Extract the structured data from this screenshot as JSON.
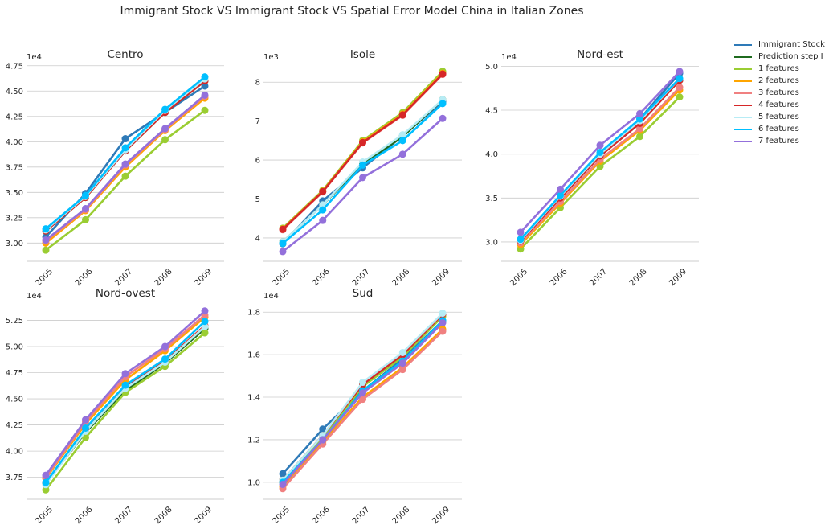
{
  "title": "Immigrant Stock VS Immigrant Stock VS Spatial Error Model China in Italian Zones",
  "legend": [
    {
      "name": "Immigrant Stock",
      "color": "#2e7ab8"
    },
    {
      "name": "Prediction step I",
      "color": "#1f6b1f"
    },
    {
      "name": "1 features",
      "color": "#9acd32"
    },
    {
      "name": "2 features",
      "color": "#ffa500"
    },
    {
      "name": "3 features",
      "color": "#f08080"
    },
    {
      "name": "4 features",
      "color": "#d62728"
    },
    {
      "name": "5 features",
      "color": "#b7ecf5"
    },
    {
      "name": "6 features",
      "color": "#00bfff"
    },
    {
      "name": "7 features",
      "color": "#9370db"
    }
  ],
  "chart_data": [
    {
      "type": "line",
      "title": "Centro",
      "multiplier_label": "1e4",
      "x": [
        "2005",
        "2006",
        "2007",
        "2008",
        "2009"
      ],
      "ylim": [
        28200,
        47800
      ],
      "yticks": [
        30000,
        32500,
        35000,
        37500,
        40000,
        42500,
        45000,
        47500
      ],
      "ytick_labels": [
        "3.00",
        "3.25",
        "3.50",
        "3.75",
        "4.00",
        "4.25",
        "4.50",
        "4.75"
      ],
      "series": [
        {
          "name": "Immigrant Stock",
          "color": "#2e7ab8",
          "values": [
            30600,
            34900,
            40300,
            42900,
            45500
          ]
        },
        {
          "name": "Prediction step I",
          "color": "#1f6b1f",
          "values": [
            31200,
            34500,
            39100,
            42900,
            46000
          ]
        },
        {
          "name": "1 features",
          "color": "#9acd32",
          "values": [
            29300,
            32300,
            36600,
            40200,
            43100
          ]
        },
        {
          "name": "2 features",
          "color": "#ffa500",
          "values": [
            30000,
            33200,
            37500,
            41100,
            44300
          ]
        },
        {
          "name": "3 features",
          "color": "#f08080",
          "values": [
            30200,
            33300,
            37700,
            41200,
            44500
          ]
        },
        {
          "name": "4 features",
          "color": "#d62728",
          "values": [
            31200,
            34500,
            39100,
            42900,
            46000
          ]
        },
        {
          "name": "5 features",
          "color": "#b7ecf5",
          "values": [
            31300,
            34600,
            39200,
            43100,
            46200
          ]
        },
        {
          "name": "6 features",
          "color": "#00bfff",
          "values": [
            31400,
            34700,
            39400,
            43200,
            46400
          ]
        },
        {
          "name": "7 features",
          "color": "#9370db",
          "values": [
            30300,
            33400,
            37800,
            41300,
            44600
          ]
        }
      ]
    },
    {
      "type": "line",
      "title": "Isole",
      "multiplier_label": "1e3",
      "x": [
        "2005",
        "2006",
        "2007",
        "2008",
        "2009"
      ],
      "ylim": [
        3400,
        8500
      ],
      "yticks": [
        4000,
        5000,
        6000,
        7000,
        8000
      ],
      "ytick_labels": [
        "4",
        "5",
        "6",
        "7",
        "8"
      ],
      "series": [
        {
          "name": "Immigrant Stock",
          "color": "#2e7ab8",
          "values": [
            3850,
            4950,
            5800,
            6620,
            7500
          ]
        },
        {
          "name": "Prediction step I",
          "color": "#1f6b1f",
          "values": [
            3900,
            4850,
            5900,
            6600,
            7550
          ]
        },
        {
          "name": "1 features",
          "color": "#9acd32",
          "values": [
            4250,
            5220,
            6500,
            7220,
            8280
          ]
        },
        {
          "name": "2 features",
          "color": "#ffa500",
          "values": [
            4230,
            5200,
            6470,
            7180,
            8230
          ]
        },
        {
          "name": "3 features",
          "color": "#f08080",
          "values": [
            4210,
            5180,
            6440,
            7150,
            8200
          ]
        },
        {
          "name": "4 features",
          "color": "#d62728",
          "values": [
            4220,
            5190,
            6450,
            7160,
            8210
          ]
        },
        {
          "name": "5 features",
          "color": "#b7ecf5",
          "values": [
            3900,
            4850,
            5950,
            6650,
            7550
          ]
        },
        {
          "name": "6 features",
          "color": "#00bfff",
          "values": [
            3860,
            4720,
            5870,
            6500,
            7450
          ]
        },
        {
          "name": "7 features",
          "color": "#9370db",
          "values": [
            3650,
            4450,
            5550,
            6150,
            7070
          ]
        }
      ]
    },
    {
      "type": "line",
      "title": "Nord-est",
      "multiplier_label": "1e4",
      "x": [
        "2005",
        "2006",
        "2007",
        "2008",
        "2009"
      ],
      "ylim": [
        27800,
        50400
      ],
      "yticks": [
        30000,
        35000,
        40000,
        45000,
        50000
      ],
      "ytick_labels": [
        "3.0",
        "3.5",
        "4.0",
        "4.5",
        "5.0"
      ],
      "series": [
        {
          "name": "Immigrant Stock",
          "color": "#2e7ab8",
          "values": [
            30300,
            35200,
            40100,
            44000,
            49200
          ]
        },
        {
          "name": "Prediction step I",
          "color": "#1f6b1f",
          "values": [
            30100,
            35000,
            39800,
            43500,
            48400
          ]
        },
        {
          "name": "1 features",
          "color": "#9acd32",
          "values": [
            29200,
            33900,
            38600,
            42000,
            46500
          ]
        },
        {
          "name": "2 features",
          "color": "#ffa500",
          "values": [
            29700,
            34400,
            39200,
            42700,
            47300
          ]
        },
        {
          "name": "3 features",
          "color": "#f08080",
          "values": [
            29900,
            34600,
            39400,
            42900,
            47600
          ]
        },
        {
          "name": "4 features",
          "color": "#d62728",
          "values": [
            30100,
            35000,
            39800,
            43500,
            48400
          ]
        },
        {
          "name": "5 features",
          "color": "#b7ecf5",
          "values": [
            30200,
            35200,
            40000,
            43800,
            48600
          ]
        },
        {
          "name": "6 features",
          "color": "#00bfff",
          "values": [
            30300,
            35300,
            40200,
            44000,
            48600
          ]
        },
        {
          "name": "7 features",
          "color": "#9370db",
          "values": [
            31100,
            36000,
            41000,
            44600,
            49400
          ]
        }
      ]
    },
    {
      "type": "line",
      "title": "Nord-ovest",
      "multiplier_label": "1e4",
      "x": [
        "2005",
        "2006",
        "2007",
        "2008",
        "2009"
      ],
      "ylim": [
        35400,
        54300
      ],
      "yticks": [
        37500,
        40000,
        42500,
        45000,
        47500,
        50000,
        52500
      ],
      "ytick_labels": [
        "3.75",
        "4.00",
        "4.25",
        "4.50",
        "4.75",
        "5.00",
        "5.25"
      ],
      "series": [
        {
          "name": "Immigrant Stock",
          "color": "#2e7ab8",
          "values": [
            36900,
            41900,
            46000,
            48500,
            51900
          ]
        },
        {
          "name": "Prediction step I",
          "color": "#1f6b1f",
          "values": [
            36900,
            41800,
            45800,
            48400,
            51700
          ]
        },
        {
          "name": "1 features",
          "color": "#9acd32",
          "values": [
            36300,
            41300,
            45600,
            48100,
            51300
          ]
        },
        {
          "name": "2 features",
          "color": "#ffa500",
          "values": [
            37400,
            42600,
            46800,
            49600,
            52800
          ]
        },
        {
          "name": "3 features",
          "color": "#f08080",
          "values": [
            37500,
            42800,
            47100,
            49800,
            53000
          ]
        },
        {
          "name": "4 features",
          "color": "#d62728",
          "values": [
            37000,
            42000,
            46100,
            48600,
            52000
          ]
        },
        {
          "name": "5 features",
          "color": "#b7ecf5",
          "values": [
            36800,
            41900,
            46000,
            48500,
            51900
          ]
        },
        {
          "name": "6 features",
          "color": "#00bfff",
          "values": [
            37000,
            42200,
            46300,
            48800,
            52400
          ]
        },
        {
          "name": "7 features",
          "color": "#9370db",
          "values": [
            37700,
            43000,
            47400,
            50000,
            53400
          ]
        }
      ]
    },
    {
      "type": "line",
      "title": "Sud",
      "multiplier_label": "1e4",
      "x": [
        "2005",
        "2006",
        "2007",
        "2008",
        "2009"
      ],
      "ylim": [
        9200,
        18500
      ],
      "yticks": [
        10000,
        12000,
        14000,
        16000,
        18000
      ],
      "ytick_labels": [
        "1.0",
        "1.2",
        "1.4",
        "1.6",
        "1.8"
      ],
      "series": [
        {
          "name": "Immigrant Stock",
          "color": "#2e7ab8",
          "values": [
            10400,
            12500,
            14300,
            15800,
            17600
          ]
        },
        {
          "name": "Prediction step I",
          "color": "#1f6b1f",
          "values": [
            10100,
            12200,
            14600,
            16000,
            17900
          ]
        },
        {
          "name": "1 features",
          "color": "#9acd32",
          "values": [
            10000,
            12100,
            14500,
            15900,
            17800
          ]
        },
        {
          "name": "2 features",
          "color": "#ffa500",
          "values": [
            9800,
            11900,
            14000,
            15400,
            17200
          ]
        },
        {
          "name": "3 features",
          "color": "#f08080",
          "values": [
            9700,
            11800,
            13900,
            15300,
            17100
          ]
        },
        {
          "name": "4 features",
          "color": "#d62728",
          "values": [
            10100,
            12200,
            14600,
            16000,
            17900
          ]
        },
        {
          "name": "5 features",
          "color": "#b7ecf5",
          "values": [
            10100,
            12200,
            14700,
            16100,
            17950
          ]
        },
        {
          "name": "6 features",
          "color": "#00bfff",
          "values": [
            10000,
            12000,
            14300,
            15700,
            17600
          ]
        },
        {
          "name": "7 features",
          "color": "#9370db",
          "values": [
            9900,
            12000,
            14200,
            15600,
            17500
          ]
        }
      ]
    }
  ]
}
